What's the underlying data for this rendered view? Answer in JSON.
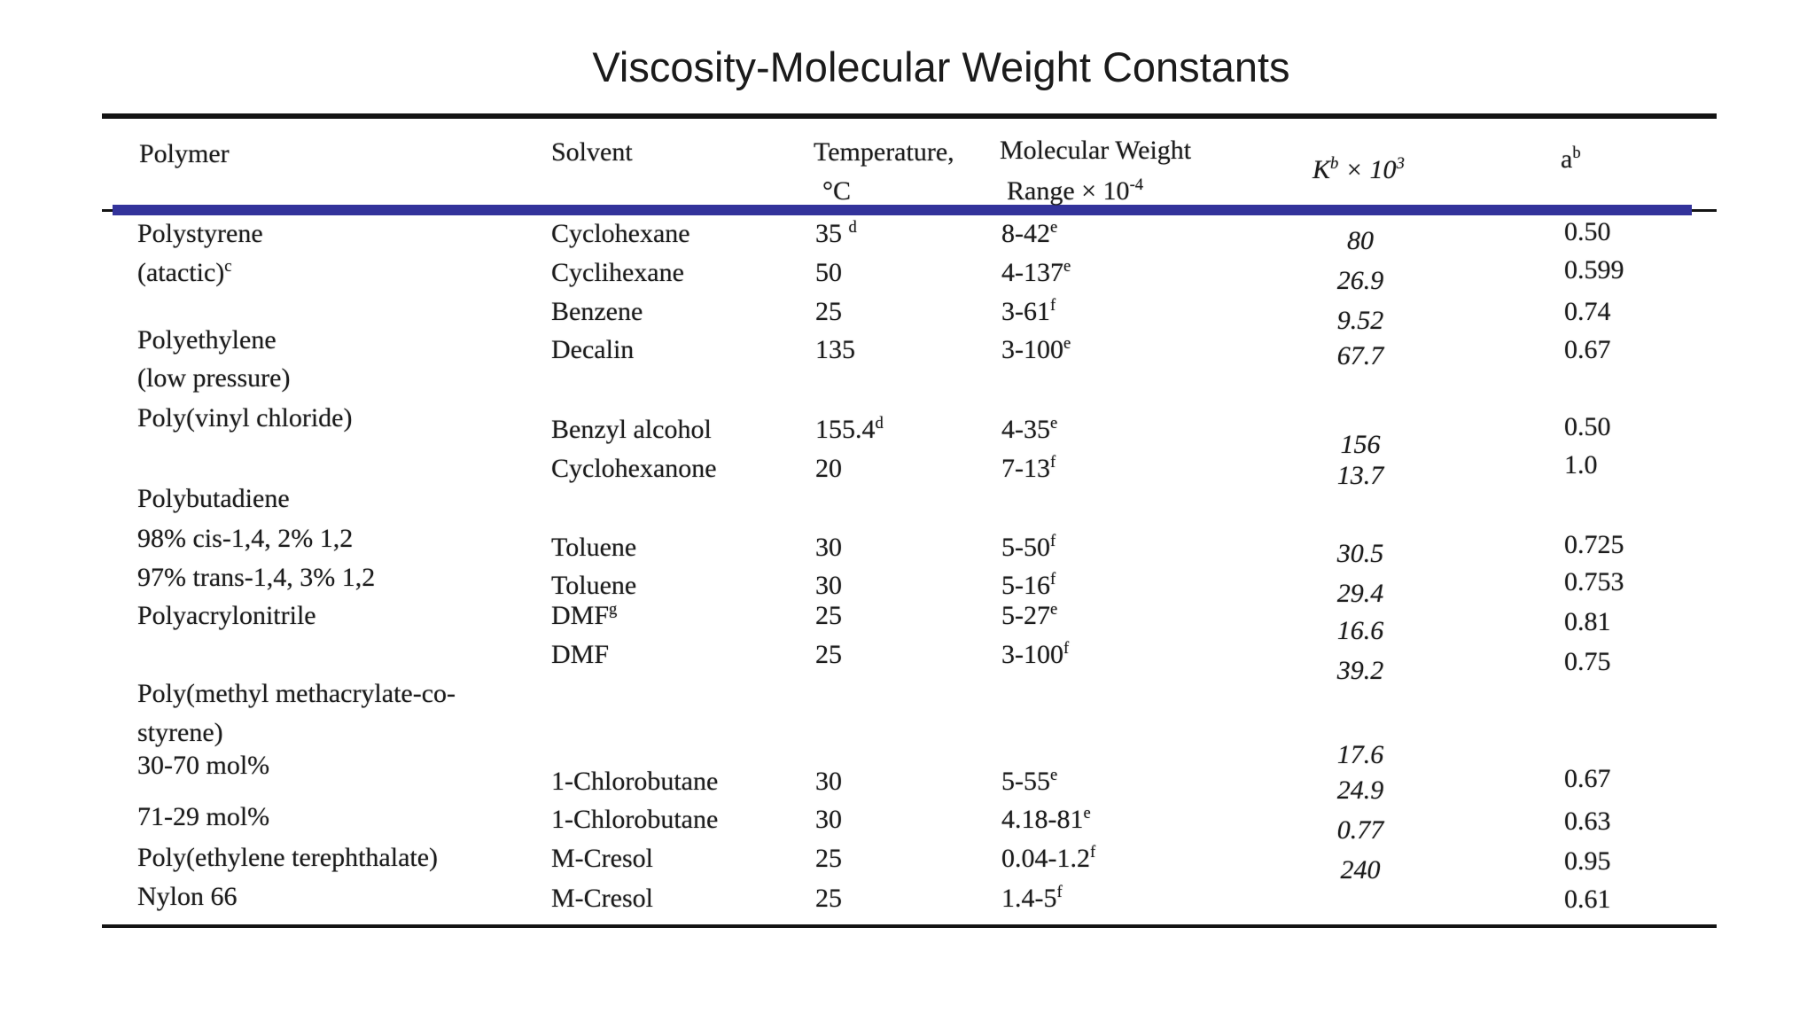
{
  "title": "Viscosity-Molecular Weight Constants",
  "colors": {
    "divider_blue": "#33339B",
    "rule_black": "#141414",
    "text": "#1c1c1c"
  },
  "table": {
    "headers": {
      "polymer": "Polymer",
      "solvent": "Solvent",
      "temperature_line1": "Temperature,",
      "temperature_line2": "°C",
      "mw_line1": "Molecular Weight",
      "mw_line2": "Range × 10^{-4}",
      "k": "K^{b} × 10^{3}",
      "a": "a^{b}"
    },
    "columns": {
      "polymer": [
        "Polystyrene",
        "(atactic)^{c}",
        "Polyethylene",
        "(low pressure)",
        "Poly(vinyl chloride)",
        "Polybutadiene",
        "98% cis-1,4, 2% 1,2",
        "97% trans-1,4, 3% 1,2",
        "Polyacrylonitrile",
        "Poly(methyl methacrylate-co-",
        "styrene)",
        "30-70 mol%",
        "71-29 mol%",
        "Poly(ethylene terephthalate)",
        "Nylon 66"
      ],
      "solvent": [
        "Cyclohexane",
        "Cyclihexane",
        "Benzene",
        "Decalin",
        "Benzyl alcohol",
        "Cyclohexanone",
        "Toluene",
        "Toluene",
        "DMF^{g}",
        "DMF",
        "1-Chlorobutane",
        "1-Chlorobutane",
        "M-Cresol",
        "M-Cresol"
      ],
      "temperature": [
        "35 ^{d}",
        "50",
        "25",
        "135",
        "155.4^{d}",
        "20",
        "30",
        "30",
        "25",
        "25",
        "30",
        "30",
        "25",
        "25"
      ],
      "mw_range": [
        "8-42^{e}",
        "4-137^{e}",
        "3-61^{f}",
        "3-100^{e}",
        "4-35^{e}",
        "7-13^{f}",
        "5-50^{f}",
        "5-16^{f}",
        "5-27^{e}",
        "3-100^{f}",
        "5-55^{e}",
        "4.18-81^{e}",
        "0.04-1.2^{f}",
        "1.4-5^{f}"
      ],
      "k_values": [
        "80",
        "26.9",
        "9.52",
        "67.7",
        "156",
        "13.7",
        "30.5",
        "29.4",
        "16.6",
        "39.2",
        "17.6",
        "24.9",
        "0.77",
        "240"
      ],
      "a_values": [
        "0.50",
        "0.599",
        "0.74",
        "0.67",
        "0.50",
        "1.0",
        "0.725",
        "0.753",
        "0.81",
        "0.75",
        "0.67",
        "0.63",
        "0.95",
        "0.61"
      ]
    }
  }
}
